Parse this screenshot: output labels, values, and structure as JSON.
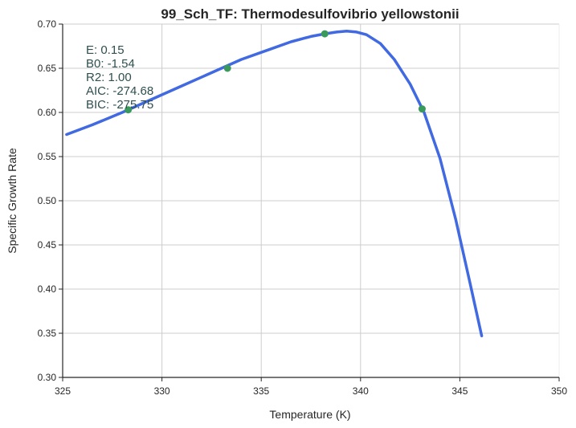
{
  "chart_data": {
    "type": "line",
    "title": "99_Sch_TF: Thermodesulfovibrio yellowstonii",
    "xlabel": "Temperature (K)",
    "ylabel": "Specific Growth Rate",
    "xlim": [
      325,
      350
    ],
    "ylim": [
      0.3,
      0.7
    ],
    "xticks": [
      "325",
      "330",
      "335",
      "340",
      "345",
      "350"
    ],
    "yticks": [
      "0.30",
      "0.35",
      "0.40",
      "0.45",
      "0.50",
      "0.55",
      "0.60",
      "0.65",
      "0.70"
    ],
    "grid": true,
    "series": [
      {
        "kind": "line",
        "color": "#4169e1",
        "x": [
          325.2,
          326.5,
          328.0,
          329.5,
          331.0,
          332.5,
          334.0,
          335.5,
          336.5,
          337.5,
          338.2,
          338.8,
          339.3,
          339.8,
          340.3,
          341.0,
          341.7,
          342.5,
          343.2,
          344.0,
          344.8,
          345.5,
          346.1
        ],
        "y": [
          0.575,
          0.586,
          0.6,
          0.615,
          0.63,
          0.645,
          0.66,
          0.672,
          0.68,
          0.686,
          0.689,
          0.691,
          0.692,
          0.691,
          0.688,
          0.678,
          0.66,
          0.632,
          0.6,
          0.548,
          0.478,
          0.408,
          0.347
        ]
      },
      {
        "kind": "scatter",
        "color": "#3a9a5b",
        "x": [
          328.3,
          333.3,
          338.2,
          343.1
        ],
        "y": [
          0.603,
          0.65,
          0.689,
          0.604
        ]
      }
    ],
    "annotations": [
      "E:  0.15",
      "B0:  -1.54",
      "R2:  1.00",
      "AIC: -274.68",
      "BIC: -275.75"
    ]
  }
}
